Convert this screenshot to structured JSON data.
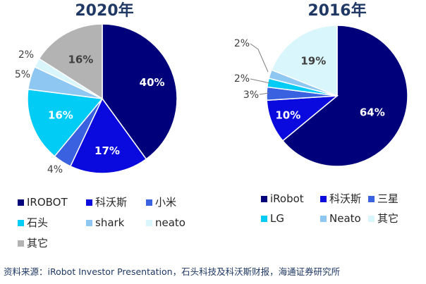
{
  "chart_data": [
    {
      "type": "pie",
      "title": "2020年",
      "categories": [
        "IROBOT",
        "科沃斯",
        "小米",
        "石头",
        "shark",
        "neato",
        "其它"
      ],
      "values": [
        40,
        17,
        4,
        16,
        5,
        2,
        16
      ],
      "labels": [
        "40%",
        "17%",
        "4%",
        "16%",
        "5%",
        "2%",
        "16%"
      ],
      "colors": [
        "#00007a",
        "#0a0adf",
        "#3a62e0",
        "#00ccf5",
        "#8ec8f2",
        "#d8f6fb",
        "#b3b3b3"
      ],
      "legend": [
        "IROBOT",
        "科沃斯",
        "小米",
        "石头",
        "shark",
        "neato",
        "其它"
      ]
    },
    {
      "type": "pie",
      "title": "2016年",
      "categories": [
        "iRobot",
        "科沃斯",
        "三星",
        "LG",
        "Neato",
        "其它"
      ],
      "values": [
        64,
        10,
        3,
        2,
        2,
        19
      ],
      "labels": [
        "64%",
        "10%",
        "3%",
        "2%",
        "2%",
        "19%"
      ],
      "colors": [
        "#00007a",
        "#0a0adf",
        "#3a62e0",
        "#00ccf5",
        "#8ec8f2",
        "#d8f6fb"
      ],
      "legend": [
        "iRobot",
        "科沃斯",
        "三星",
        "LG",
        "Neato",
        "其它"
      ]
    }
  ],
  "source": "资料来源：iRobot Investor Presentation，石头科技及科沃斯财报，海通证券研究所"
}
